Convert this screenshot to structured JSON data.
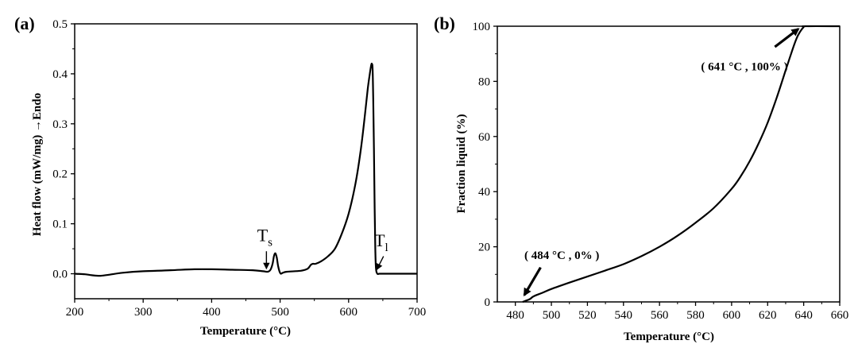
{
  "chart_data": [
    {
      "type": "line",
      "panel_label": "(a)",
      "xlabel": "Temperature (°C)",
      "ylabel": "Heat flow (mW/mg)  →Endo",
      "xlim": [
        200,
        700
      ],
      "ylim": [
        -0.05,
        0.5
      ],
      "xticks": [
        200,
        300,
        400,
        500,
        600,
        700
      ],
      "yticks": [
        0.0,
        0.1,
        0.2,
        0.3,
        0.4,
        0.5
      ],
      "grid": false,
      "series": [
        {
          "x": [
            200,
            215,
            225,
            237,
            250,
            270,
            300,
            340,
            375,
            400,
            430,
            460,
            475,
            482,
            486,
            489,
            491,
            493,
            495,
            497,
            499,
            501,
            504,
            510,
            530,
            540,
            545,
            548,
            552,
            560,
            570,
            580,
            590,
            600,
            610,
            618,
            624,
            628,
            631,
            633,
            634,
            635,
            636,
            637,
            638,
            639,
            640,
            642,
            645,
            650,
            660,
            680,
            700
          ],
          "y": [
            0.0,
            -0.001,
            -0.003,
            -0.004,
            -0.002,
            0.002,
            0.005,
            0.007,
            0.009,
            0.009,
            0.008,
            0.007,
            0.005,
            0.004,
            0.008,
            0.02,
            0.035,
            0.041,
            0.033,
            0.016,
            0.005,
            0.0,
            0.002,
            0.004,
            0.006,
            0.01,
            0.018,
            0.02,
            0.02,
            0.025,
            0.035,
            0.05,
            0.08,
            0.12,
            0.18,
            0.25,
            0.32,
            0.37,
            0.4,
            0.417,
            0.42,
            0.41,
            0.35,
            0.25,
            0.13,
            0.05,
            0.01,
            0.0,
            0.0,
            0.0,
            0.0,
            0.0,
            0.0
          ]
        }
      ],
      "annotations": [
        {
          "main": "T",
          "sub": "s",
          "at": [
            480,
            0.065
          ],
          "arrow_from": [
            480,
            0.045
          ],
          "arrow_to": [
            480,
            0.01
          ]
        },
        {
          "main": "T",
          "sub": "l",
          "at": [
            650,
            0.055
          ],
          "arrow_from": [
            651,
            0.035
          ],
          "arrow_to": [
            641,
            0.008
          ]
        }
      ]
    },
    {
      "type": "line",
      "panel_label": "(b)",
      "xlabel": "Temperature (°C)",
      "ylabel": "Fraction liquid (%)",
      "xlim": [
        470,
        660
      ],
      "ylim": [
        0,
        100
      ],
      "xticks": [
        480,
        500,
        520,
        540,
        560,
        580,
        600,
        620,
        640,
        660
      ],
      "yticks": [
        0,
        20,
        40,
        60,
        80,
        100
      ],
      "grid": false,
      "series": [
        {
          "x": [
            484,
            488,
            490,
            495,
            500,
            510,
            520,
            530,
            540,
            550,
            560,
            570,
            580,
            590,
            600,
            605,
            610,
            615,
            620,
            625,
            630,
            633,
            636,
            638,
            640,
            641,
            660
          ],
          "y": [
            0,
            1.0,
            2.0,
            3.3,
            4.7,
            7.0,
            9.2,
            11.4,
            13.7,
            16.6,
            20.0,
            24.0,
            28.7,
            34.0,
            41.0,
            45.5,
            51.0,
            57.5,
            65.0,
            74.0,
            84.0,
            90.0,
            95.5,
            98.0,
            99.7,
            100,
            100
          ]
        }
      ],
      "annotations": [
        {
          "text": "( 484 °C , 0% )",
          "at": [
            485,
            15.5
          ],
          "arrow_from": [
            494,
            12.5
          ],
          "arrow_to": [
            485,
            2.5
          ]
        },
        {
          "text": "( 641 °C , 100% )",
          "at": [
            583,
            84
          ],
          "arrow_from": [
            624,
            92.5
          ],
          "arrow_to": [
            637,
            99
          ]
        }
      ]
    }
  ]
}
